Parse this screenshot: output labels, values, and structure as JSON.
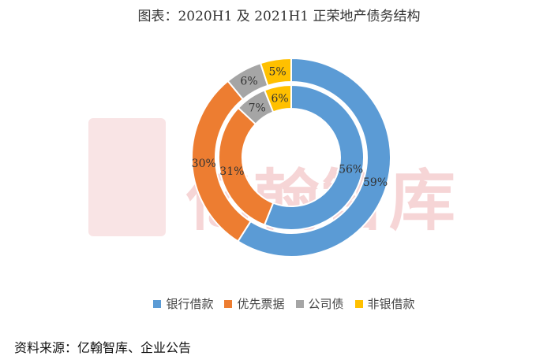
{
  "title": "图表：2020H1 及 2021H1 正荣地产债务结构",
  "source": "资料来源：亿翰智库、企业公告",
  "watermark": "亿翰智库",
  "chart_data": {
    "type": "pie",
    "variant": "nested-donut",
    "categories": [
      "银行借款",
      "优先票据",
      "公司债",
      "非银借款"
    ],
    "colors": [
      "#5b9bd5",
      "#ed7d31",
      "#a5a5a5",
      "#ffc000"
    ],
    "series": [
      {
        "ring": "inner",
        "values": [
          56,
          31,
          7,
          6
        ],
        "labels": [
          "56%",
          "31%",
          "7%",
          "6%"
        ]
      },
      {
        "ring": "outer",
        "values": [
          59,
          30,
          6,
          5
        ],
        "labels": [
          "59%",
          "30%",
          "6%",
          "5%"
        ]
      }
    ],
    "legend_position": "bottom"
  }
}
